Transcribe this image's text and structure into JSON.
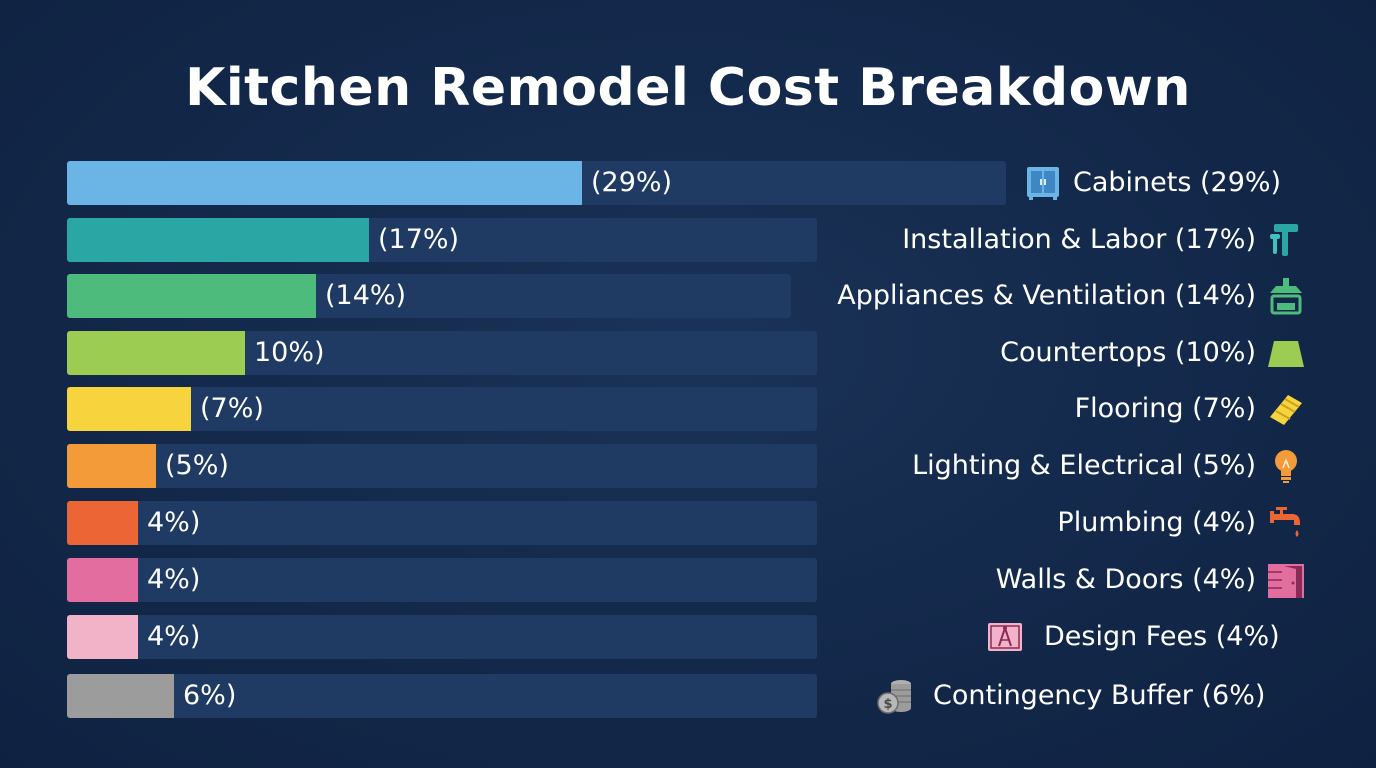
{
  "chart_data": {
    "type": "bar",
    "title": "Kitchen Remodel Cost Breakdown",
    "xlim": [
      0,
      100
    ],
    "categories": [
      "Cabinets (29%)",
      "Installation & Labor (17%)",
      "Appliances & Ventilation (14%)",
      "Countertops (10%)",
      "Flooring (7%)",
      "Lighting & Electrical (5%)",
      "Plumbing (4%)",
      "Walls & Doors (4%)",
      "Design Fees (4%)",
      "Contingency Buffer (6%)"
    ],
    "values": [
      29,
      17,
      14,
      10,
      7,
      5,
      4,
      4,
      4,
      6
    ],
    "value_labels": [
      "(29%)",
      "(17%)",
      "(14%)",
      "10%)",
      "(7%)",
      "(5%)",
      "4%)",
      "4%)",
      "4%)",
      "6%)"
    ],
    "colors": [
      "#6ab4e6",
      "#2aa7a4",
      "#4dbb7c",
      "#9ccc52",
      "#f7d43e",
      "#f39b38",
      "#ec6535",
      "#e46d9f",
      "#f2b3c9",
      "#9c9c9c"
    ],
    "icons": [
      "cabinet-icon",
      "tools-icon",
      "range-hood-icon",
      "countertop-icon",
      "flooring-icon",
      "lightbulb-icon",
      "faucet-icon",
      "door-icon",
      "blueprint-icon",
      "coins-icon"
    ]
  }
}
